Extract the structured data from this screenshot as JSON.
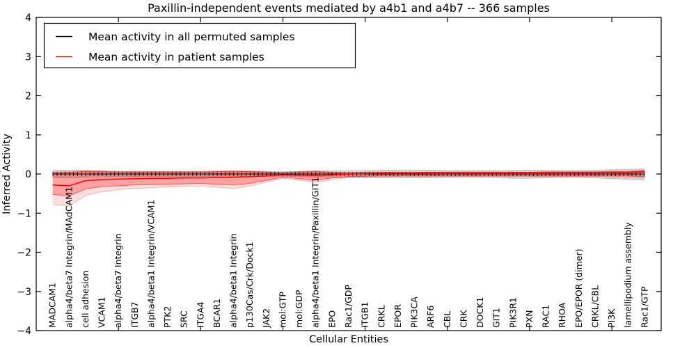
{
  "chart_data": {
    "type": "line",
    "title": "Paxillin-independent events mediated by a4b1 and a4b7 -- 366 samples",
    "xlabel": "Cellular Entities",
    "ylabel": "Inferred Activity",
    "ylim": [
      -4,
      4
    ],
    "xlim": [
      -1,
      37
    ],
    "grid": false,
    "legend_position": "upper left",
    "ytick_values": [
      4,
      3,
      2,
      1,
      0,
      -1,
      -2,
      -3,
      -4
    ],
    "ytick_labels": [
      "4",
      "3",
      "2",
      "1",
      "0",
      "−1",
      "−2",
      "−3",
      "−4"
    ],
    "major_xtick_indices": [
      4,
      9,
      14,
      19,
      24,
      29,
      34
    ],
    "categories": [
      "MADCAM1",
      "alpha4/beta7 Integrin/MAdCAM1",
      "cell adhesion",
      "VCAM1",
      "alpha4/beta7 Integrin",
      "ITGB7",
      "alpha4/beta1 Integrin/VCAM1",
      "PTK2",
      "SRC",
      "ITGA4",
      "BCAR1",
      "alpha4/beta1 Integrin",
      "p130Cas/Crk/Dock1",
      "JAK2",
      "mol:GTP",
      "mol:GDP",
      "alpha4/beta1 Integrin/Paxillin/GIT1",
      "EPO",
      "Rac1/GDP",
      "ITGB1",
      "CRKL",
      "EPOR",
      "PIK3CA",
      "ARF6",
      "CBL",
      "CRK",
      "DOCK1",
      "GIT1",
      "PIK3R1",
      "PXN",
      "RAC1",
      "RHOA",
      "EPO/EPOR (dimer)",
      "CRKL/CBL",
      "PI3K",
      "lamellipodium assembly",
      "Rac1/GTP"
    ],
    "legend": {
      "items": [
        {
          "label": "Mean activity in all permuted samples",
          "color": "#000000"
        },
        {
          "label": "Mean activity in patient samples",
          "color": "#ff0000"
        }
      ]
    },
    "colors": {
      "permuted_line": "#000000",
      "patient_line": "#ff0000",
      "permuted_band": "rgba(0,0,0,0.16)",
      "permuted_band_edge": "rgba(0,0,0,0.22)",
      "patient_band_inner": "rgba(255,0,0,0.27)",
      "patient_band_inner_edge": "rgba(255,0,0,0.55)",
      "patient_band_outer": "rgba(255,0,0,0.13)",
      "patient_band_outer_edge": "rgba(255,0,0,0.30)"
    },
    "series": [
      {
        "name": "permuted_mean",
        "values": [
          0,
          0,
          0,
          0,
          0,
          0,
          0,
          0,
          0,
          0,
          0,
          0,
          0,
          0,
          0,
          0,
          0,
          0,
          0,
          0,
          0,
          0,
          0,
          0,
          0,
          0,
          0,
          0,
          0,
          0,
          0,
          0,
          0,
          0,
          0,
          0,
          0
        ]
      },
      {
        "name": "patient_mean",
        "values": [
          -0.28,
          -0.3,
          -0.17,
          -0.14,
          -0.13,
          -0.12,
          -0.11,
          -0.11,
          -0.1,
          -0.1,
          -0.09,
          -0.08,
          -0.07,
          -0.05,
          -0.02,
          -0.03,
          -0.04,
          -0.02,
          0.0,
          0.01,
          0.02,
          0.02,
          0.02,
          0.03,
          0.03,
          0.03,
          0.03,
          0.03,
          0.03,
          0.03,
          0.03,
          0.04,
          0.04,
          0.04,
          0.04,
          0.04,
          0.06
        ]
      },
      {
        "name": "permuted_band_high",
        "values": [
          0.1,
          0.1,
          0.09,
          0.08,
          0.07,
          0.07,
          0.07,
          0.07,
          0.07,
          0.07,
          0.07,
          0.07,
          0.07,
          0.06,
          0.06,
          0.07,
          0.08,
          0.08,
          0.08,
          0.09,
          0.1,
          0.1,
          0.1,
          0.1,
          0.09,
          0.09,
          0.09,
          0.09,
          0.09,
          0.1,
          0.1,
          0.09,
          0.09,
          0.1,
          0.11,
          0.12,
          0.13
        ]
      },
      {
        "name": "permuted_band_low",
        "values": [
          -0.1,
          -0.1,
          -0.09,
          -0.08,
          -0.07,
          -0.07,
          -0.07,
          -0.07,
          -0.07,
          -0.07,
          -0.07,
          -0.07,
          -0.07,
          -0.06,
          -0.06,
          -0.07,
          -0.08,
          -0.08,
          -0.08,
          -0.09,
          -0.1,
          -0.1,
          -0.1,
          -0.1,
          -0.09,
          -0.09,
          -0.09,
          -0.1,
          -0.11,
          -0.11,
          -0.1,
          -0.09,
          -0.09,
          -0.1,
          -0.12,
          -0.14,
          -0.16
        ]
      },
      {
        "name": "patient_band_inner_high",
        "values": [
          0.03,
          0.04,
          0.07,
          0.06,
          0.05,
          0.05,
          0.05,
          0.05,
          0.05,
          0.05,
          0.06,
          0.07,
          0.06,
          0.05,
          0.03,
          0.05,
          0.06,
          0.04,
          0.03,
          0.04,
          0.04,
          0.04,
          0.04,
          0.04,
          0.04,
          0.04,
          0.04,
          0.04,
          0.04,
          0.04,
          0.05,
          0.05,
          0.05,
          0.05,
          0.06,
          0.06,
          0.08
        ]
      },
      {
        "name": "patient_band_inner_low",
        "values": [
          -0.52,
          -0.56,
          -0.38,
          -0.32,
          -0.3,
          -0.28,
          -0.27,
          -0.26,
          -0.25,
          -0.24,
          -0.26,
          -0.28,
          -0.24,
          -0.16,
          -0.08,
          -0.12,
          -0.16,
          -0.1,
          -0.07,
          -0.06,
          -0.05,
          -0.05,
          -0.05,
          -0.05,
          -0.05,
          -0.05,
          -0.05,
          -0.05,
          -0.05,
          -0.05,
          -0.05,
          -0.05,
          -0.05,
          -0.05,
          -0.05,
          -0.05,
          -0.07
        ]
      },
      {
        "name": "patient_band_outer_high",
        "values": [
          0.05,
          0.06,
          0.09,
          0.08,
          0.07,
          0.07,
          0.07,
          0.06,
          0.06,
          0.06,
          0.08,
          0.09,
          0.08,
          0.06,
          0.04,
          0.06,
          0.08,
          0.05,
          0.04,
          0.05,
          0.05,
          0.05,
          0.05,
          0.05,
          0.05,
          0.05,
          0.05,
          0.05,
          0.05,
          0.05,
          0.06,
          0.06,
          0.06,
          0.06,
          0.07,
          0.07,
          0.1
        ]
      },
      {
        "name": "patient_band_outer_low",
        "values": [
          -0.78,
          -0.82,
          -0.55,
          -0.45,
          -0.4,
          -0.37,
          -0.35,
          -0.33,
          -0.32,
          -0.31,
          -0.34,
          -0.37,
          -0.31,
          -0.21,
          -0.11,
          -0.16,
          -0.22,
          -0.14,
          -0.09,
          -0.08,
          -0.07,
          -0.06,
          -0.06,
          -0.06,
          -0.06,
          -0.06,
          -0.06,
          -0.06,
          -0.06,
          -0.06,
          -0.07,
          -0.07,
          -0.07,
          -0.07,
          -0.07,
          -0.08,
          -0.1
        ]
      }
    ]
  }
}
